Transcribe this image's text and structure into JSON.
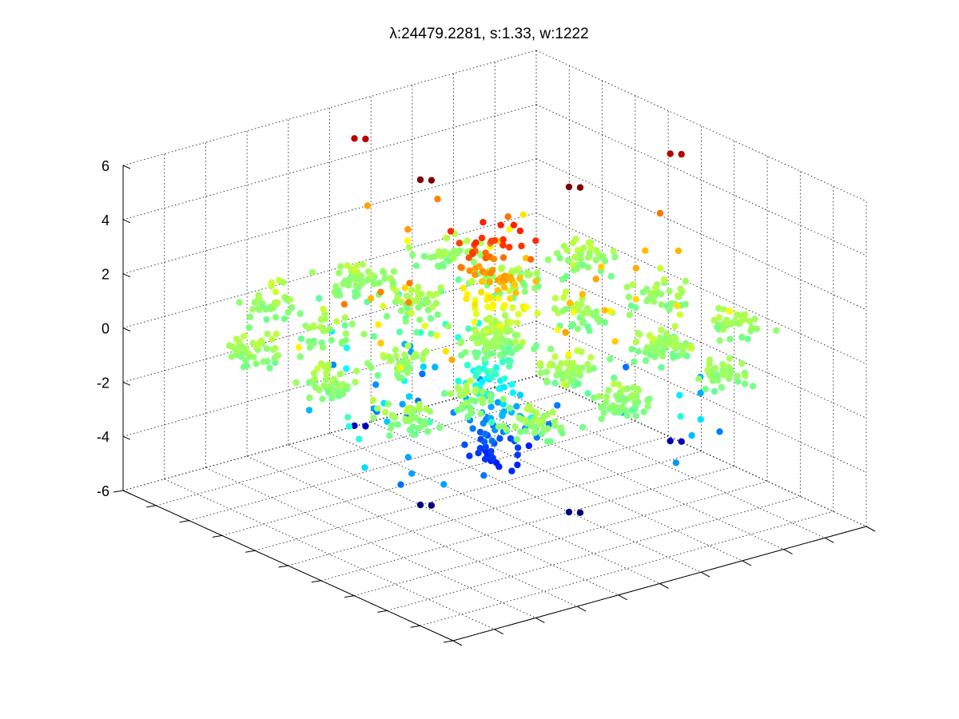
{
  "chart_data": {
    "type": "scatter",
    "dimensions": 3,
    "title": "λ:24479.2281, s:1.33, w:1222",
    "zlim": [
      -6,
      6
    ],
    "z_ticks": [
      -6,
      -4,
      -2,
      0,
      2,
      4,
      6
    ],
    "z_tick_labels": [
      "-6",
      "-4",
      "-2",
      "0",
      "2",
      "4",
      "6"
    ],
    "xlabel": "",
    "ylabel": "",
    "zlabel": "",
    "grid": true,
    "box": false,
    "colormap": "jet",
    "color_by": "z",
    "approx_point_count": 1222,
    "colors": {
      "grid": "#262626",
      "axis": "#000000",
      "background": "#ffffff"
    }
  }
}
